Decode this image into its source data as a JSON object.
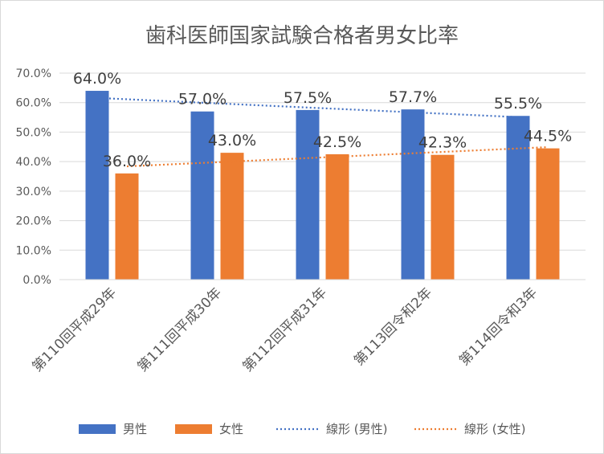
{
  "chart_data": {
    "type": "bar",
    "title": "歯科医師国家試験合格者男女比率",
    "categories": [
      "第110回平成29年",
      "第111回平成30年",
      "第112回平成31年",
      "第113回令和2年",
      "第114回令和3年"
    ],
    "series": [
      {
        "name": "男性",
        "values": [
          64.0,
          57.0,
          57.5,
          57.7,
          55.5
        ],
        "labels": [
          "64.0%",
          "57.0%",
          "57.5%",
          "57.7%",
          "55.5%"
        ],
        "color": "#4472c4"
      },
      {
        "name": "女性",
        "values": [
          36.0,
          43.0,
          42.5,
          42.3,
          44.5
        ],
        "labels": [
          "36.0%",
          "43.0%",
          "42.5%",
          "42.3%",
          "44.5%"
        ],
        "color": "#ed7d31"
      }
    ],
    "trendlines": [
      {
        "name": "線形 (男性)",
        "of_series": "男性",
        "type": "linear",
        "style": "dotted",
        "color": "#4472c4"
      },
      {
        "name": "線形 (女性)",
        "of_series": "女性",
        "type": "linear",
        "style": "dotted",
        "color": "#ed7d31"
      }
    ],
    "y_ticks": [
      "0.0%",
      "10.0%",
      "20.0%",
      "30.0%",
      "40.0%",
      "50.0%",
      "60.0%",
      "70.0%"
    ],
    "ylim": [
      0,
      70
    ],
    "grid": true,
    "legend": "bottom"
  }
}
